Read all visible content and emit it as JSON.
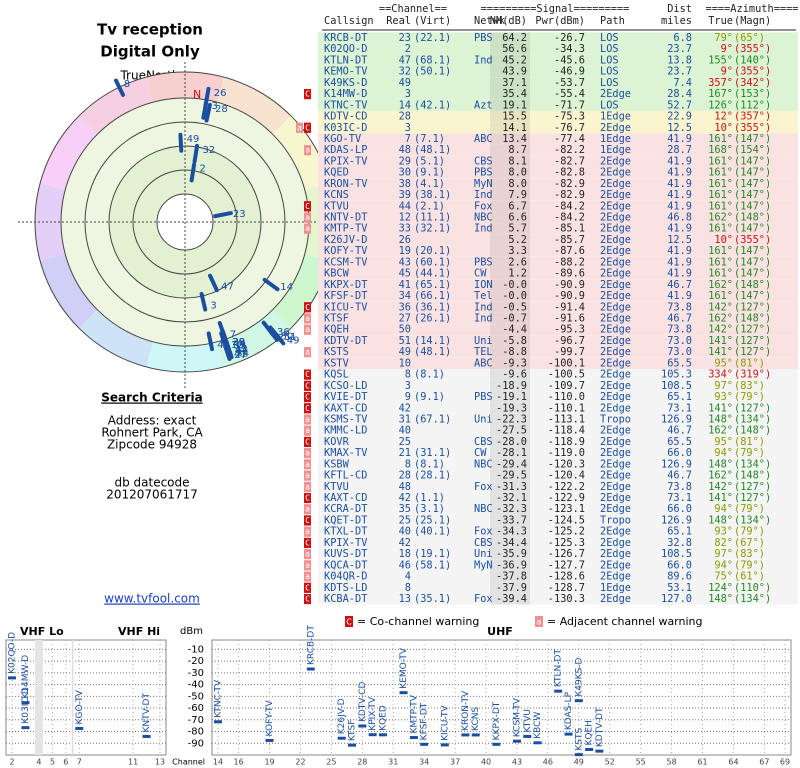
{
  "header": {
    "title": "Tv reception",
    "subtitle": "Digital Only",
    "truenorth": "TrueNorth",
    "north": "N"
  },
  "search": {
    "title": "Search Criteria",
    "address": "Address: exact",
    "city": "Rohnert Park, CA",
    "zip": "Zipcode 94928",
    "db": "db datecode",
    "datecode": "201207061717",
    "link": "www.tvfool.com"
  },
  "polar": {
    "rlim": [
      70,
      -10
    ]
  },
  "table": {
    "group_headers": [
      "==Channel==",
      "=========Signal=========",
      "Dist",
      "====Azimuth===="
    ],
    "columns": [
      "Callsign",
      "Real",
      "(Virt)",
      "Netwk",
      "NM(dB)",
      "Pwr(dBm)",
      "Path",
      "miles",
      "True",
      "(Magn)"
    ],
    "rows": [
      [
        "KRCB-DT",
        "23",
        "(22.1)",
        "PBS",
        "64.2",
        "-26.7",
        "LOS",
        "6.8",
        "79°",
        "(65°)"
      ],
      [
        "K02QO-D",
        "2",
        null,
        null,
        "56.6",
        "-34.3",
        "LOS",
        "23.7",
        "9°",
        "(355°)"
      ],
      [
        "KTLN-DT",
        "47",
        "(68.1)",
        "Ind",
        "45.2",
        "-45.6",
        "LOS",
        "13.8",
        "155°",
        "(140°)"
      ],
      [
        "KEMO-TV",
        "32",
        "(50.1)",
        null,
        "43.9",
        "-46.9",
        "LOS",
        "23.7",
        "9°",
        "(355°)"
      ],
      [
        "K49KS-D",
        "49",
        null,
        null,
        "37.1",
        "-53.7",
        "LOS",
        "7.4",
        "357°",
        "(342°)"
      ],
      [
        "K14MW-D",
        "3",
        null,
        null,
        "35.4",
        "-55.4",
        "2Edge",
        "28.4",
        "167°",
        "(153°)"
      ],
      [
        "KTNC-TV",
        "14",
        "(42.1)",
        "Azt",
        "19.1",
        "-71.7",
        "LOS",
        "52.7",
        "126°",
        "(112°)"
      ],
      [
        "KDTV-CD",
        "28",
        null,
        null,
        "15.5",
        "-75.3",
        "1Edge",
        "22.9",
        "12°",
        "(357°)"
      ],
      [
        "K03IC-D",
        "3",
        null,
        null,
        "14.1",
        "-76.7",
        "2Edge",
        "12.5",
        "10°",
        "(355°)"
      ],
      [
        "KGO-TV",
        "7",
        "(7.1)",
        "ABC",
        "13.4",
        "-77.4",
        "1Edge",
        "41.9",
        "161°",
        "(147°)"
      ],
      [
        "KDAS-LP",
        "48",
        "(48.1)",
        null,
        "8.7",
        "-82.2",
        "1Edge",
        "28.7",
        "168°",
        "(154°)"
      ],
      [
        "KPIX-TV",
        "29",
        "(5.1)",
        "CBS",
        "8.1",
        "-82.7",
        "2Edge",
        "41.9",
        "161°",
        "(147°)"
      ],
      [
        "KQED",
        "30",
        "(9.1)",
        "PBS",
        "8.0",
        "-82.8",
        "2Edge",
        "41.9",
        "161°",
        "(147°)"
      ],
      [
        "KRON-TV",
        "38",
        "(4.1)",
        "MyN",
        "8.0",
        "-82.9",
        "2Edge",
        "41.9",
        "161°",
        "(147°)"
      ],
      [
        "KCNS",
        "39",
        "(38.1)",
        "Ind",
        "7.9",
        "-82.9",
        "2Edge",
        "41.9",
        "161°",
        "(147°)"
      ],
      [
        "KTVU",
        "44",
        "(2.1)",
        "Fox",
        "6.7",
        "-84.2",
        "2Edge",
        "41.9",
        "161°",
        "(147°)"
      ],
      [
        "KNTV-DT",
        "12",
        "(11.1)",
        "NBC",
        "6.6",
        "-84.2",
        "2Edge",
        "46.8",
        "162°",
        "(148°)"
      ],
      [
        "KMTP-TV",
        "33",
        "(32.1)",
        "Ind",
        "5.7",
        "-85.1",
        "2Edge",
        "41.9",
        "161°",
        "(147°)"
      ],
      [
        "K26JV-D",
        "26",
        null,
        null,
        "5.2",
        "-85.7",
        "2Edge",
        "12.5",
        "10°",
        "(355°)"
      ],
      [
        "KOFY-TV",
        "19",
        "(20.1)",
        null,
        "3.3",
        "-87.6",
        "2Edge",
        "41.9",
        "161°",
        "(147°)"
      ],
      [
        "KCSM-TV",
        "43",
        "(60.1)",
        "PBS",
        "2.6",
        "-88.2",
        "2Edge",
        "41.9",
        "161°",
        "(147°)"
      ],
      [
        "KBCW",
        "45",
        "(44.1)",
        "CW",
        "1.2",
        "-89.6",
        "2Edge",
        "41.9",
        "161°",
        "(147°)"
      ],
      [
        "KKPX-DT",
        "41",
        "(65.1)",
        "ION",
        "-0.0",
        "-90.9",
        "2Edge",
        "46.7",
        "162°",
        "(148°)"
      ],
      [
        "KFSF-DT",
        "34",
        "(66.1)",
        "Tel",
        "-0.0",
        "-90.9",
        "2Edge",
        "41.9",
        "161°",
        "(147°)"
      ],
      [
        "KICU-TV",
        "36",
        "(36.1)",
        "Ind",
        "-0.5",
        "-91.4",
        "2Edge",
        "73.8",
        "142°",
        "(127°)"
      ],
      [
        "KTSF",
        "27",
        "(26.1)",
        "Ind",
        "-0.7",
        "-91.6",
        "2Edge",
        "46.7",
        "162°",
        "(148°)"
      ],
      [
        "KQEH",
        "50",
        null,
        null,
        "-4.4",
        "-95.3",
        "2Edge",
        "73.8",
        "142°",
        "(127°)"
      ],
      [
        "KDTV-DT",
        "51",
        "(14.1)",
        "Uni",
        "-5.8",
        "-96.7",
        "2Edge",
        "73.0",
        "141°",
        "(127°)"
      ],
      [
        "KSTS",
        "49",
        "(48.1)",
        "TEL",
        "-8.8",
        "-99.7",
        "2Edge",
        "73.0",
        "141°",
        "(127°)"
      ],
      [
        "KSTV",
        "10",
        null,
        "ABC",
        "-9.3",
        "-100.1",
        "2Edge",
        "65.5",
        "95°",
        "(81°)"
      ],
      [
        "KQSL",
        "8",
        "(8.1)",
        null,
        "-9.6",
        "-100.5",
        "2Edge",
        "105.3",
        "334°",
        "(319°)"
      ],
      [
        "KCSO-LD",
        "3",
        null,
        null,
        "-18.9",
        "-109.7",
        "2Edge",
        "108.5",
        "97°",
        "(83°)"
      ],
      [
        "KVIE-DT",
        "9",
        "(9.1)",
        "PBS",
        "-19.1",
        "-110.0",
        "2Edge",
        "65.1",
        "93°",
        "(79°)"
      ],
      [
        "KAXT-CD",
        "42",
        null,
        null,
        "-19.3",
        "-110.1",
        "2Edge",
        "73.1",
        "141°",
        "(127°)"
      ],
      [
        "KSMS-TV",
        "31",
        "(67.1)",
        "Uni",
        "-22.3",
        "-113.1",
        "Tropo",
        "126.9",
        "148°",
        "(134°)"
      ],
      [
        "KMMC-LD",
        "40",
        null,
        null,
        "-27.5",
        "-118.4",
        "2Edge",
        "46.7",
        "162°",
        "(148°)"
      ],
      [
        "KOVR",
        "25",
        null,
        "CBS",
        "-28.0",
        "-118.9",
        "2Edge",
        "65.5",
        "95°",
        "(81°)"
      ],
      [
        "KMAX-TV",
        "21",
        "(31.1)",
        "CW",
        "-28.1",
        "-119.0",
        "2Edge",
        "66.0",
        "94°",
        "(79°)"
      ],
      [
        "KSBW",
        "8",
        "(8.1)",
        "NBC",
        "-29.4",
        "-120.3",
        "2Edge",
        "126.9",
        "148°",
        "(134°)"
      ],
      [
        "KFTL-CD",
        "28",
        "(28.1)",
        null,
        "-29.5",
        "-120.4",
        "2Edge",
        "46.7",
        "162°",
        "(148°)"
      ],
      [
        "KTVU",
        "48",
        null,
        "Fox",
        "-31.3",
        "-122.2",
        "2Edge",
        "73.8",
        "142°",
        "(127°)"
      ],
      [
        "KAXT-CD",
        "42",
        "(1.1)",
        null,
        "-32.1",
        "-122.9",
        "2Edge",
        "73.1",
        "141°",
        "(127°)"
      ],
      [
        "KCRA-DT",
        "35",
        "(3.1)",
        "NBC",
        "-32.3",
        "-123.1",
        "2Edge",
        "66.0",
        "94°",
        "(79°)"
      ],
      [
        "KQET-DT",
        "25",
        "(25.1)",
        null,
        "-33.7",
        "-124.5",
        "Tropo",
        "126.9",
        "148°",
        "(134°)"
      ],
      [
        "KTXL-DT",
        "40",
        "(40.1)",
        "Fox",
        "-34.3",
        "-125.2",
        "2Edge",
        "65.1",
        "93°",
        "(79°)"
      ],
      [
        "KPIX-TV",
        "42",
        null,
        "CBS",
        "-34.4",
        "-125.3",
        "2Edge",
        "32.8",
        "82°",
        "(67°)"
      ],
      [
        "KUVS-DT",
        "18",
        "(19.1)",
        "Uni",
        "-35.9",
        "-126.7",
        "2Edge",
        "108.5",
        "97°",
        "(83°)"
      ],
      [
        "KQCA-DT",
        "46",
        "(58.1)",
        "MyN",
        "-36.9",
        "-127.7",
        "2Edge",
        "66.0",
        "94°",
        "(79°)"
      ],
      [
        "K04QR-D",
        "4",
        null,
        null,
        "-37.8",
        "-128.6",
        "2Edge",
        "89.6",
        "75°",
        "(61°)"
      ],
      [
        "KDTS-LD",
        "8",
        null,
        null,
        "-37.9",
        "-128.7",
        "1Edge",
        "53.1",
        "124°",
        "(110°)"
      ],
      [
        "KCBA-DT",
        "13",
        "(35.1)",
        "Fox",
        "-39.4",
        "-130.3",
        "2Edge",
        "127.0",
        "148°",
        "(134°)"
      ]
    ],
    "warnings": [
      [],
      [],
      [],
      [],
      [],
      [
        0
      ],
      [],
      [],
      [
        1,
        0
      ],
      [],
      [
        1
      ],
      [],
      [],
      [],
      [],
      [
        0
      ],
      [
        1
      ],
      [
        1
      ],
      [],
      [],
      [],
      [],
      [],
      [],
      [
        0
      ],
      [
        1
      ],
      [
        1
      ],
      [],
      [
        1
      ],
      [],
      [
        0
      ],
      [
        0
      ],
      [
        0
      ],
      [
        0
      ],
      [
        1
      ],
      [
        1
      ],
      [
        0
      ],
      [
        1
      ],
      [
        1
      ],
      [
        1
      ],
      [
        1
      ],
      [
        0
      ],
      [
        1
      ],
      [
        0
      ],
      [
        1
      ],
      [
        0
      ],
      [
        1
      ],
      [
        1
      ],
      [
        1
      ],
      [
        0
      ],
      [
        0
      ]
    ],
    "row_colors": [
      "#dcf3d4",
      "#dcf3d4",
      "#dcf3d4",
      "#dcf3d4",
      "#dcf3d4",
      "#dcf3d4",
      "#dcf3d4",
      "#faf5cf",
      "#faf5cf",
      "#fbe2e2",
      "#fbe2e2",
      "#fbe2e2",
      "#fbe2e2",
      "#fbe2e2",
      "#fbe2e2",
      "#fbe2e2",
      "#fbe2e2",
      "#fbe2e2",
      "#fbe2e2",
      "#fbe2e2",
      "#fbe2e2",
      "#fbe2e2",
      "#fbe2e2",
      "#fbe2e2",
      "#fbe2e2",
      "#fbe2e2",
      "#fbe2e2",
      "#fbe2e2",
      "#fbe2e2",
      "#fbe2e2",
      "#f4f4f4",
      "#f4f4f4",
      "#f4f4f4",
      "#f4f4f4",
      "#f4f4f4",
      "#f4f4f4",
      "#f4f4f4",
      "#f4f4f4",
      "#f4f4f4",
      "#f4f4f4",
      "#f4f4f4",
      "#f4f4f4",
      "#f4f4f4",
      "#f4f4f4",
      "#f4f4f4",
      "#f4f4f4",
      "#f4f4f4",
      "#f4f4f4",
      "#f4f4f4",
      "#f4f4f4",
      "#f4f4f4"
    ]
  },
  "spectrum": {
    "legend": [
      {
        "symbol": "C",
        "text": "= Co-channel warning",
        "color": "#cc1111"
      },
      {
        "symbol": "a",
        "text": "= Adjacent channel warning",
        "color": "#f09090"
      }
    ],
    "ylabel": "dBm",
    "xlabel": "Channel",
    "ylim": [
      -2,
      -100
    ],
    "yticks": [
      -10,
      -20,
      -30,
      -40,
      -50,
      -60,
      -70,
      -80,
      -90
    ],
    "vhf": {
      "labels": [
        "VHF Lo",
        "VHF Hi"
      ],
      "xlim": [
        2,
        13
      ],
      "xticks": [
        2,
        4,
        5,
        6,
        7,
        11,
        13
      ]
    },
    "uhf": {
      "label": "UHF",
      "xlim": [
        14,
        69
      ],
      "xticks": [
        14,
        16,
        19,
        22,
        25,
        28,
        31,
        34,
        37,
        40,
        43,
        46,
        49,
        52,
        55,
        58,
        61,
        64,
        67,
        69
      ]
    },
    "bar_color": "#1a4fa0"
  }
}
